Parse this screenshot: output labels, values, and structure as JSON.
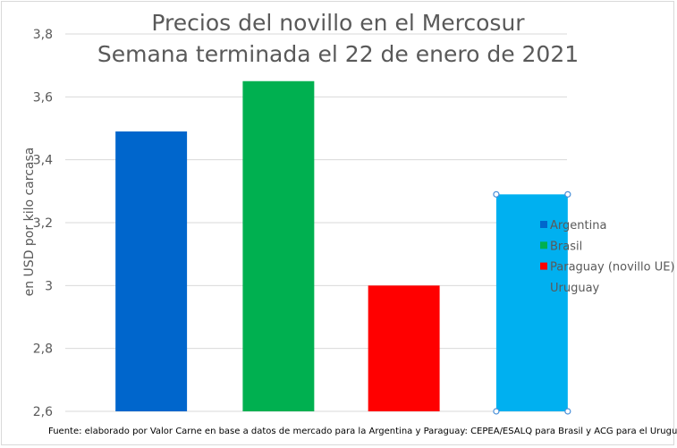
{
  "chart_data": {
    "type": "bar",
    "title": [
      "Precios del novillo en el Mercosur",
      "Semana terminada el 22 de enero de 2021"
    ],
    "xlabel": "",
    "ylabel": "en USD por kilo carcasa",
    "ylim": [
      2.6,
      3.8
    ],
    "yticks": [
      2.6,
      2.8,
      3,
      3.2,
      3.4,
      3.6,
      3.8
    ],
    "ytick_labels": [
      "2,6",
      "2,8",
      "3",
      "3,2",
      "3,4",
      "3,6",
      "3,8"
    ],
    "grid": true,
    "legend_position": "right",
    "series": [
      {
        "name": "Argentina",
        "value": 3.49,
        "color": "#0066cc"
      },
      {
        "name": "Brasil",
        "value": 3.65,
        "color": "#00b050"
      },
      {
        "name": "Paraguay (novillo UE)",
        "value": 3.0,
        "color": "#ff0000"
      },
      {
        "name": "Uruguay",
        "value": 3.29,
        "color": "#00b0f0"
      }
    ],
    "selected_series": "Uruguay"
  },
  "footnote": "Fuente: elaborado por Valor Carne en base a datos de mercado para la Argentina y Paraguay: CEPEA/ESALQ para Brasil y ACG para el Uruguay"
}
